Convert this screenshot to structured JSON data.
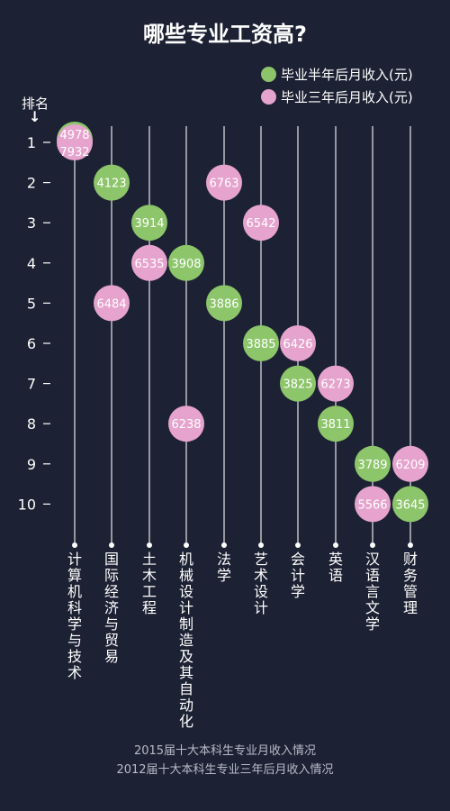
{
  "title": "哪些专业工资高?",
  "rank_label": "排名",
  "rank_arrow": "↓",
  "colors": {
    "background": "#1c2133",
    "half_year": "#8cc56a",
    "three_year": "#e5a3cd"
  },
  "legend": [
    {
      "label": "毕业半年后月收入(元)",
      "color": "#8cc56a"
    },
    {
      "label": "毕业三年后月收入(元)",
      "color": "#e5a3cd"
    }
  ],
  "footer": {
    "line1": "2015届十大本科生专业月收入情况",
    "line2": "2012届十大本科生专业三年后月收入情况"
  },
  "chart_data": {
    "type": "scatter",
    "y_axis": {
      "label": "排名",
      "ticks": [
        1,
        2,
        3,
        4,
        5,
        6,
        7,
        8,
        9,
        10
      ],
      "inverted": true
    },
    "categories": [
      "计算机科学与技术",
      "国际经济与贸易",
      "土木工程",
      "机械设计制造及其自动化",
      "法学",
      "艺术设计",
      "会计学",
      "英语",
      "汉语言文学",
      "财务管理"
    ],
    "series": [
      {
        "name": "毕业半年后月收入(元)",
        "ranks": [
          1,
          2,
          3,
          4,
          5,
          6,
          7,
          8,
          9,
          10
        ],
        "values": [
          4978,
          4123,
          3914,
          3908,
          3886,
          3885,
          3825,
          3811,
          3789,
          3645
        ]
      },
      {
        "name": "毕业三年后月收入(元)",
        "ranks": [
          1,
          5,
          4,
          8,
          2,
          3,
          6,
          7,
          10,
          9
        ],
        "values": [
          7932,
          6484,
          6535,
          6238,
          6763,
          6542,
          6426,
          6273,
          5566,
          6209
        ]
      }
    ]
  }
}
